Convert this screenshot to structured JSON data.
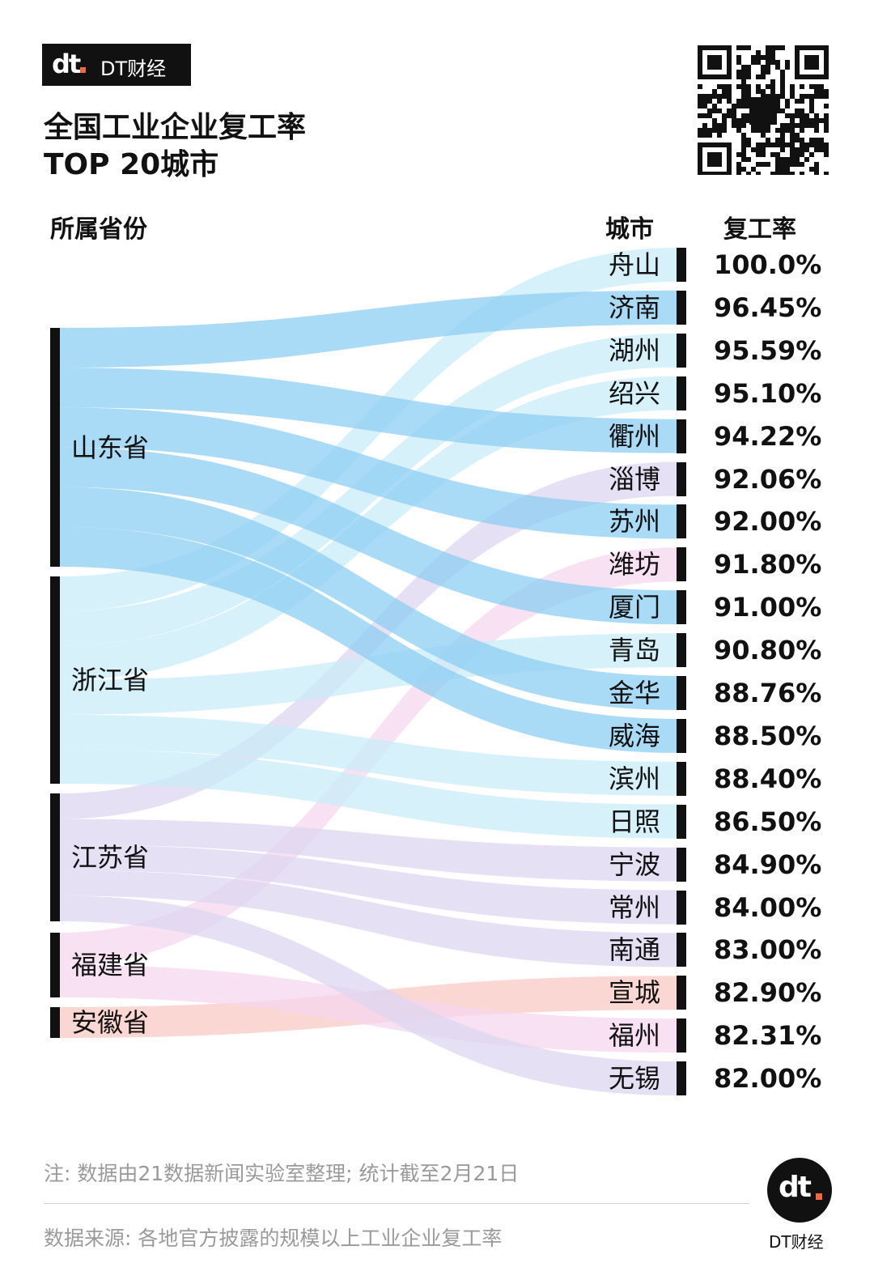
{
  "brand": {
    "name": "DT财经",
    "logo_text": "dt"
  },
  "title_line1": "全国工业企业复工率",
  "title_line2": "TOP 20城市",
  "headers": {
    "province": "所属省份",
    "city": "城市",
    "rate": "复工率"
  },
  "colors": {
    "山东省": "#8ccdf3",
    "浙江省": "#c9ecf8",
    "江苏省": "#dcd6ef",
    "福建省": "#f6d7ee",
    "安徽省": "#f8c9c4",
    "accent": "#f26a3b"
  },
  "chart_data": {
    "type": "sankey",
    "provinces": [
      "山东省",
      "浙江省",
      "江苏省",
      "福建省",
      "安徽省"
    ],
    "rows": [
      {
        "city": "舟山",
        "rate": "100.0%",
        "value": 100.0,
        "province": "浙江省"
      },
      {
        "city": "济南",
        "rate": "96.45%",
        "value": 96.45,
        "province": "山东省"
      },
      {
        "city": "湖州",
        "rate": "95.59%",
        "value": 95.59,
        "province": "浙江省"
      },
      {
        "city": "绍兴",
        "rate": "95.10%",
        "value": 95.1,
        "province": "浙江省"
      },
      {
        "city": "衢州",
        "rate": "94.22%",
        "value": 94.22,
        "province": "山东省"
      },
      {
        "city": "淄博",
        "rate": "92.06%",
        "value": 92.06,
        "province": "江苏省"
      },
      {
        "city": "苏州",
        "rate": "92.00%",
        "value": 92.0,
        "province": "山东省"
      },
      {
        "city": "潍坊",
        "rate": "91.80%",
        "value": 91.8,
        "province": "福建省"
      },
      {
        "city": "厦门",
        "rate": "91.00%",
        "value": 91.0,
        "province": "山东省"
      },
      {
        "city": "青岛",
        "rate": "90.80%",
        "value": 90.8,
        "province": "浙江省"
      },
      {
        "city": "金华",
        "rate": "88.76%",
        "value": 88.76,
        "province": "山东省"
      },
      {
        "city": "威海",
        "rate": "88.50%",
        "value": 88.5,
        "province": "山东省"
      },
      {
        "city": "滨州",
        "rate": "88.40%",
        "value": 88.4,
        "province": "浙江省"
      },
      {
        "city": "日照",
        "rate": "86.50%",
        "value": 86.5,
        "province": "浙江省"
      },
      {
        "city": "宁波",
        "rate": "84.90%",
        "value": 84.9,
        "province": "江苏省"
      },
      {
        "city": "常州",
        "rate": "84.00%",
        "value": 84.0,
        "province": "江苏省"
      },
      {
        "city": "南通",
        "rate": "83.00%",
        "value": 83.0,
        "province": "江苏省"
      },
      {
        "city": "宣城",
        "rate": "82.90%",
        "value": 82.9,
        "province": "安徽省"
      },
      {
        "city": "福州",
        "rate": "82.31%",
        "value": 82.31,
        "province": "福建省"
      },
      {
        "city": "无锡",
        "rate": "82.00%",
        "value": 82.0,
        "province": "江苏省"
      }
    ]
  },
  "note": "注: 数据由21数据新闻实验室整理; 统计截至2月21日",
  "source": "数据来源: 各地官方披露的规模以上工业企业复工率"
}
